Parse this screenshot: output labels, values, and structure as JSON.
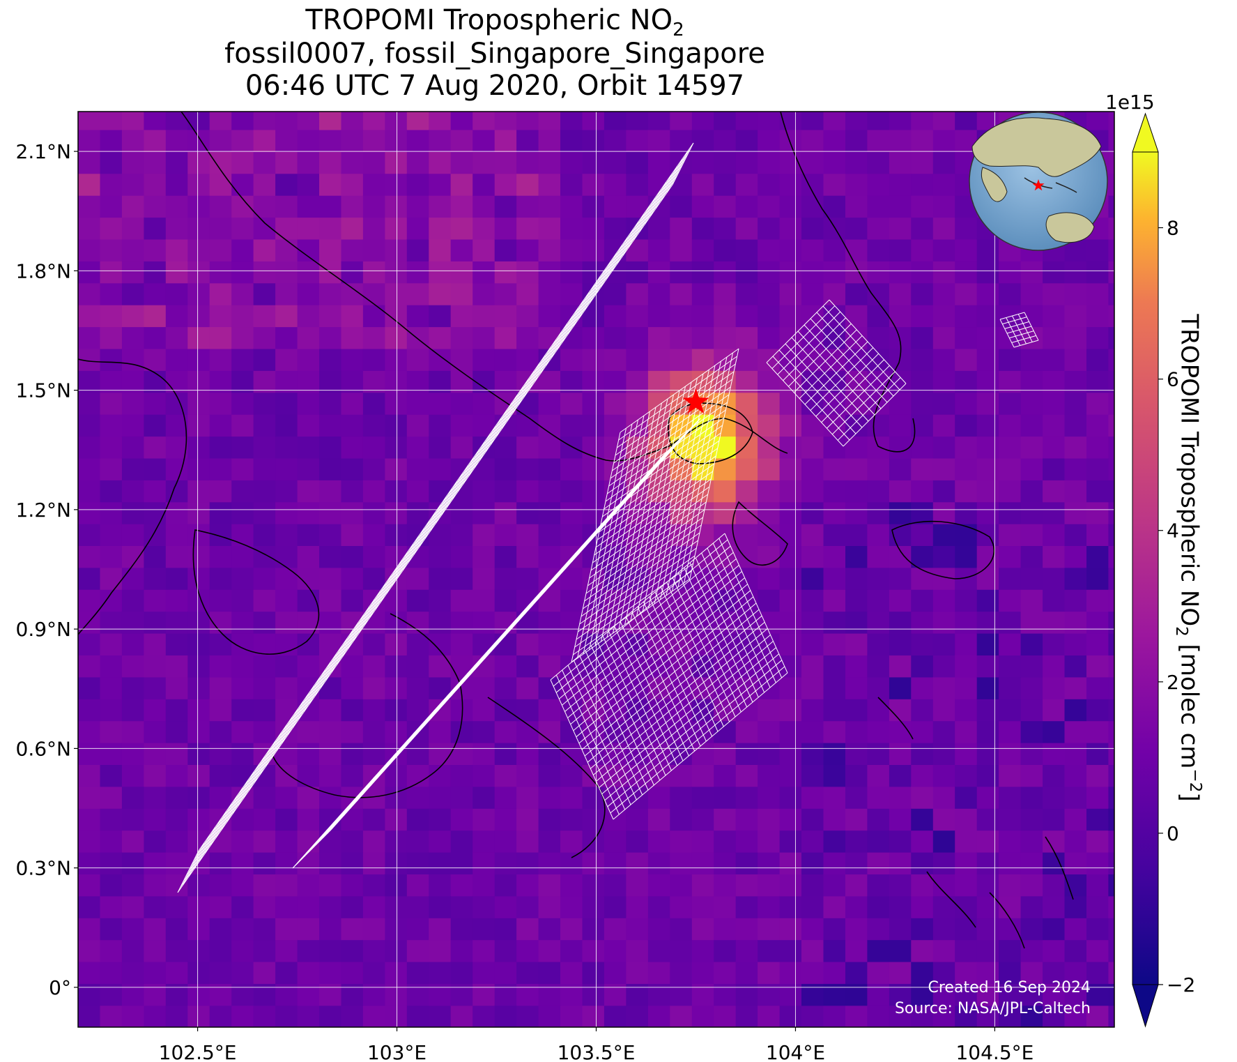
{
  "title": {
    "line1_main": "TROPOMI Tropospheric NO",
    "line1_sub": "2",
    "line2": "fossil0007, fossil_Singapore_Singapore",
    "line3": "06:46 UTC 7 Aug 2020, Orbit 14597"
  },
  "map": {
    "lon_range": [
      102.2,
      104.8
    ],
    "lat_range": [
      -0.1,
      2.2
    ],
    "lon_ticks": [
      {
        "value": 102.5,
        "label": "102.5°E"
      },
      {
        "value": 103.0,
        "label": "103°E"
      },
      {
        "value": 103.5,
        "label": "103.5°E"
      },
      {
        "value": 104.0,
        "label": "104°E"
      },
      {
        "value": 104.5,
        "label": "104.5°E"
      }
    ],
    "lat_ticks": [
      {
        "value": 2.1,
        "label": "2.1°N"
      },
      {
        "value": 1.8,
        "label": "1.8°N"
      },
      {
        "value": 1.5,
        "label": "1.5°N"
      },
      {
        "value": 1.2,
        "label": "1.2°N"
      },
      {
        "value": 0.9,
        "label": "0.9°N"
      },
      {
        "value": 0.6,
        "label": "0.6°N"
      },
      {
        "value": 0.3,
        "label": "0.3°N"
      },
      {
        "value": 0.0,
        "label": "0°"
      }
    ],
    "grid": true,
    "site_marker": {
      "lon": 103.75,
      "lat": 1.47,
      "symbol": "star",
      "color": "#ff0000"
    },
    "hotspot": {
      "lon": 103.75,
      "lat": 1.35,
      "value": 8.5
    },
    "plume_grid_color": "#ffffff",
    "inset_globe": {
      "position": "top-right",
      "ocean_color": "#7fa9cf",
      "land_color": "#c9c79b"
    }
  },
  "colorbar": {
    "title_main": "TROPOMI Tropospheric NO",
    "title_sub": "2",
    "title_unit": " [molec cm",
    "title_sup": "−2",
    "title_end": "]",
    "exponent": "1e15",
    "range": [
      -2,
      9
    ],
    "colormap": "plasma",
    "ticks": [
      {
        "value": 8,
        "label": "8"
      },
      {
        "value": 6,
        "label": "6"
      },
      {
        "value": 4,
        "label": "4"
      },
      {
        "value": 2,
        "label": "2"
      },
      {
        "value": 0,
        "label": "0"
      },
      {
        "value": -2,
        "label": "−2"
      }
    ]
  },
  "credits": {
    "created": "Created 16 Sep 2024",
    "source": "Source: NASA/JPL-Caltech"
  }
}
